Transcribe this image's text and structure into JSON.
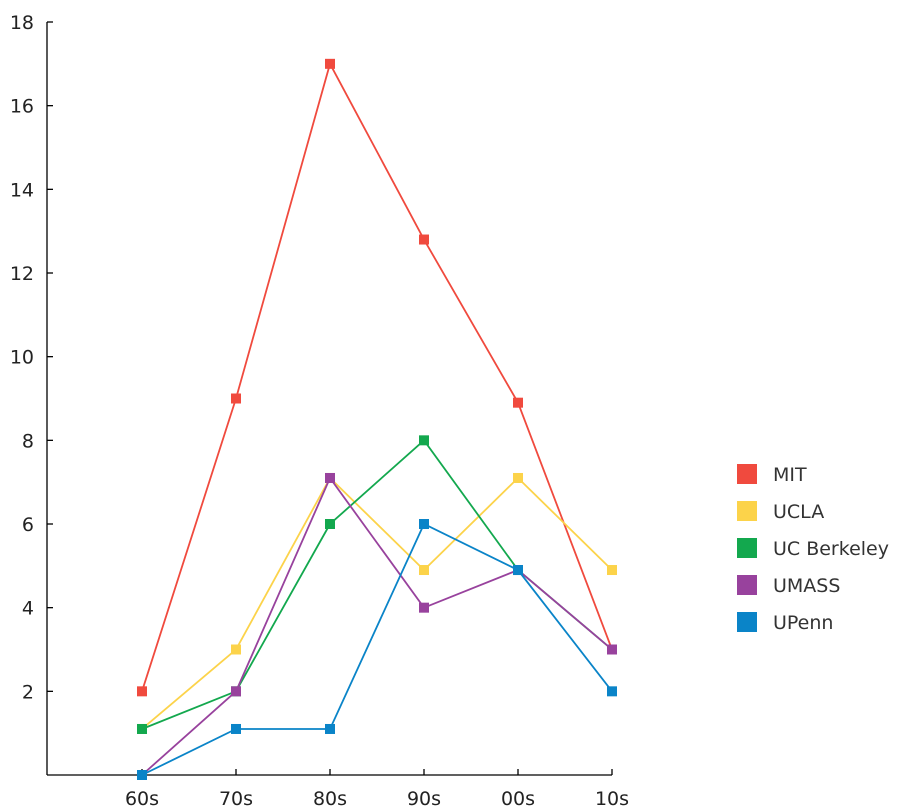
{
  "chart_data": {
    "type": "line",
    "title": "",
    "xlabel": "",
    "ylabel": "",
    "categories": [
      "60s",
      "70s",
      "80s",
      "90s",
      "00s",
      "10s"
    ],
    "y_ticks": [
      "2",
      "4",
      "6",
      "8",
      "10",
      "12",
      "14",
      "16",
      "18"
    ],
    "ylim": [
      0,
      18
    ],
    "grid": false,
    "legend_position": "right",
    "series": [
      {
        "name": "MIT",
        "color": "#f04a3e",
        "values": [
          2,
          9,
          17,
          12.8,
          8.9,
          3
        ]
      },
      {
        "name": "UCLA",
        "color": "#fcd34a",
        "values": [
          1.1,
          3,
          7.1,
          4.9,
          7.1,
          4.9
        ]
      },
      {
        "name": "UC Berkeley",
        "color": "#13a84e",
        "values": [
          1.1,
          2,
          6,
          8,
          4.9,
          3
        ]
      },
      {
        "name": "UMASS",
        "color": "#98429d",
        "values": [
          0,
          2,
          7.1,
          4,
          4.9,
          3
        ]
      },
      {
        "name": "UPenn",
        "color": "#0a84c8",
        "values": [
          0,
          1.1,
          1.1,
          6,
          4.9,
          2
        ]
      }
    ]
  }
}
